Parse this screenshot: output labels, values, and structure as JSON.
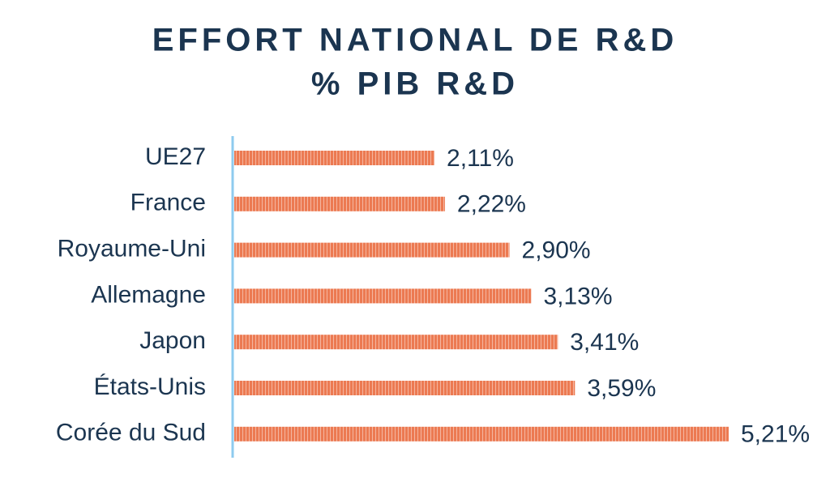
{
  "chart_data": {
    "type": "bar",
    "orientation": "horizontal",
    "title": "EFFORT NATIONAL DE R&D",
    "subtitle": "% PIB R&D",
    "categories": [
      "UE27",
      "France",
      "Royaume-Uni",
      "Allemagne",
      "Japon",
      "États-Unis",
      "Corée du Sud"
    ],
    "values": [
      2.11,
      2.22,
      2.9,
      3.13,
      3.41,
      3.59,
      5.21
    ],
    "value_labels": [
      "2,11%",
      "2,22%",
      "2,90%",
      "3,13%",
      "3,41%",
      "3,59%",
      "5,21%"
    ],
    "color": "#ec7a52"
  }
}
